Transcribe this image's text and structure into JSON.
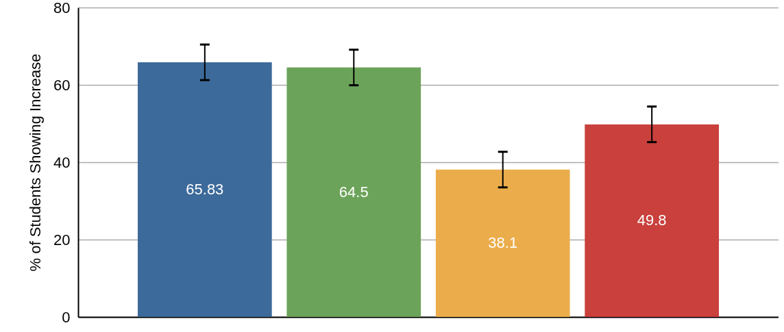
{
  "chart_data": {
    "type": "bar",
    "ylabel": "% of Students Showing Increase",
    "categories": [
      null,
      null,
      null,
      null
    ],
    "values": [
      65.83,
      64.5,
      38.1,
      49.8
    ],
    "colors": [
      "#3c6a9a",
      "#6ca35a",
      "#ebad4b",
      "#c9403c"
    ],
    "errors": [
      4.6,
      4.6,
      4.6,
      4.6
    ],
    "ylim": [
      0,
      80
    ],
    "yticks": [
      0,
      20,
      40,
      60,
      80
    ],
    "grid": "y",
    "data_labels": true,
    "tick_labels": "y"
  }
}
